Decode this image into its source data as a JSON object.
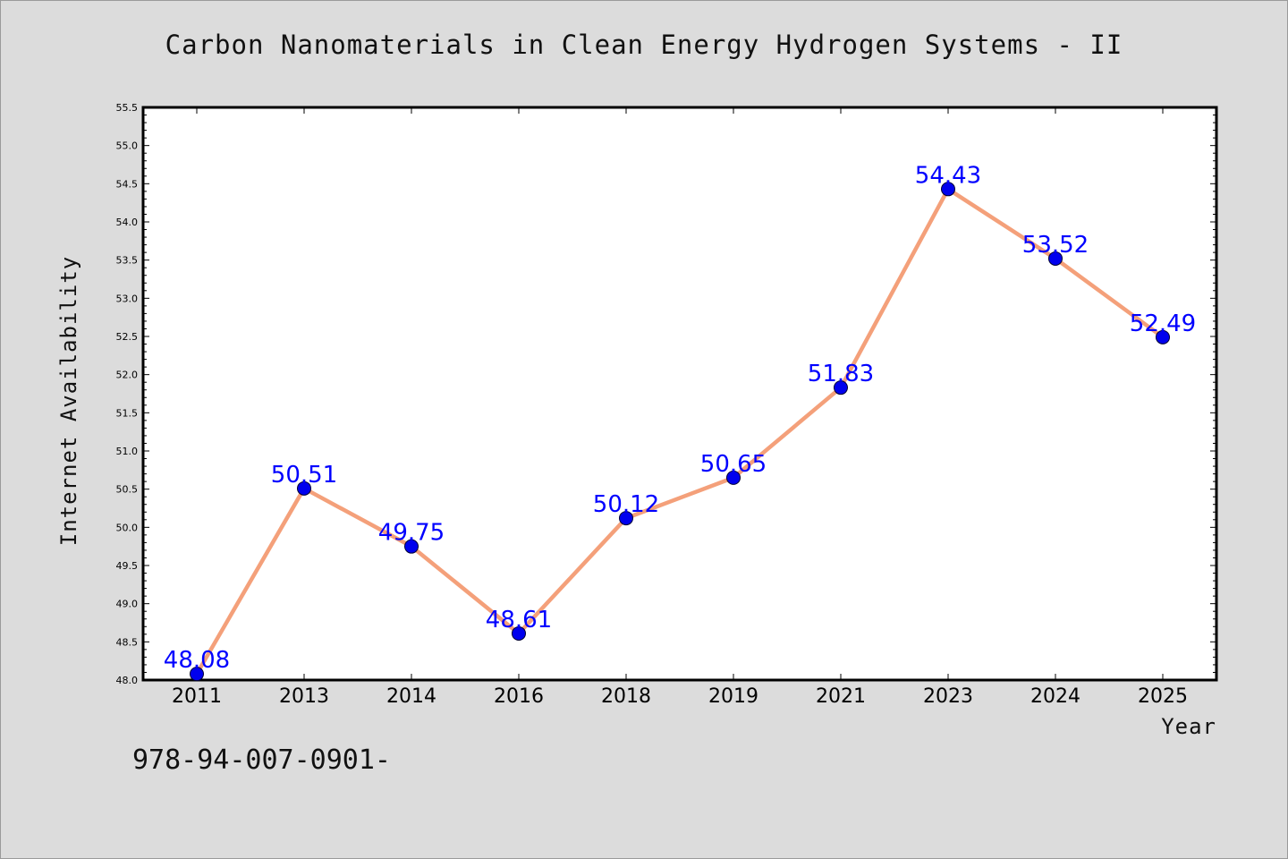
{
  "chart_data": {
    "type": "line",
    "title": "Carbon Nanomaterials in Clean Energy Hydrogen Systems - II",
    "xlabel": "Year",
    "ylabel": "Internet Availability",
    "categories": [
      "2011",
      "2013",
      "2014",
      "2016",
      "2018",
      "2019",
      "2021",
      "2023",
      "2024",
      "2025"
    ],
    "series": [
      {
        "values": [
          48.08,
          50.51,
          49.75,
          48.61,
          50.12,
          50.65,
          51.83,
          54.43,
          53.52,
          52.49
        ],
        "data_labels": [
          "48.08",
          "50.51",
          "49.75",
          "48.61",
          "50.12",
          "50.65",
          "51.83",
          "54.43",
          "53.52",
          "52.49"
        ]
      }
    ],
    "ylim": [
      48.0,
      55.5
    ],
    "yticks": [
      "48.0",
      "48.5",
      "49.0",
      "49.5",
      "50.0",
      "50.5",
      "51.0",
      "51.5",
      "52.0",
      "52.5",
      "53.0",
      "53.5",
      "54.0",
      "54.5",
      "55.0",
      "55.5"
    ],
    "grid": false,
    "legend": "none",
    "colors": {
      "line": "#f4a07a",
      "marker": "#0000ee",
      "data_label": "#0000ff",
      "plot_background": "#ffffff",
      "page_background": "#dcdcdc"
    }
  },
  "footer": {
    "isbn": "978-94-007-0901-"
  }
}
